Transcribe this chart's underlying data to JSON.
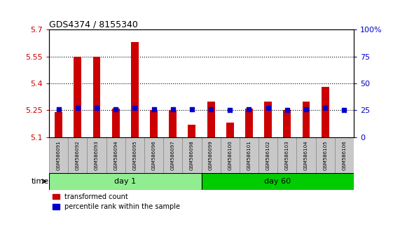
{
  "title": "GDS4374 / 8155340",
  "samples": [
    "GSM586091",
    "GSM586092",
    "GSM586093",
    "GSM586094",
    "GSM586095",
    "GSM586096",
    "GSM586097",
    "GSM586098",
    "GSM586099",
    "GSM586100",
    "GSM586101",
    "GSM586102",
    "GSM586103",
    "GSM586104",
    "GSM586105",
    "GSM586106"
  ],
  "transformed_count": [
    5.24,
    5.55,
    5.55,
    5.26,
    5.63,
    5.25,
    5.25,
    5.17,
    5.3,
    5.18,
    5.26,
    5.3,
    5.25,
    5.3,
    5.38,
    5.1
  ],
  "percentile_rank": [
    26,
    27,
    27,
    26,
    27,
    26,
    26,
    26,
    26,
    25,
    26,
    27,
    25,
    26,
    27,
    25
  ],
  "groups": [
    {
      "label": "day 1",
      "start": 0,
      "end": 8,
      "color": "#90EE90"
    },
    {
      "label": "day 60",
      "start": 8,
      "end": 16,
      "color": "#00CC00"
    }
  ],
  "ylim_left": [
    5.1,
    5.7
  ],
  "ylim_right": [
    0,
    100
  ],
  "yticks_left": [
    5.1,
    5.25,
    5.4,
    5.55,
    5.7
  ],
  "yticks_right": [
    0,
    25,
    50,
    75,
    100
  ],
  "ytick_labels_left": [
    "5.1",
    "5.25",
    "5.4",
    "5.55",
    "5.7"
  ],
  "ytick_labels_right": [
    "0",
    "25",
    "50",
    "75",
    "100%"
  ],
  "left_color": "#CC0000",
  "right_color": "#0000CC",
  "bar_color": "#CC0000",
  "dot_color": "#0000CC",
  "grid_lines": [
    5.25,
    5.4,
    5.55
  ],
  "bar_width": 0.4,
  "dot_size": 40,
  "background_color": "#ffffff",
  "axes_bg": "#f0f0f0",
  "day1_bg": "#c8f0c8",
  "day60_bg": "#5cd65c",
  "legend_red_label": "transformed count",
  "legend_blue_label": "percentile rank within the sample",
  "time_label": "time"
}
